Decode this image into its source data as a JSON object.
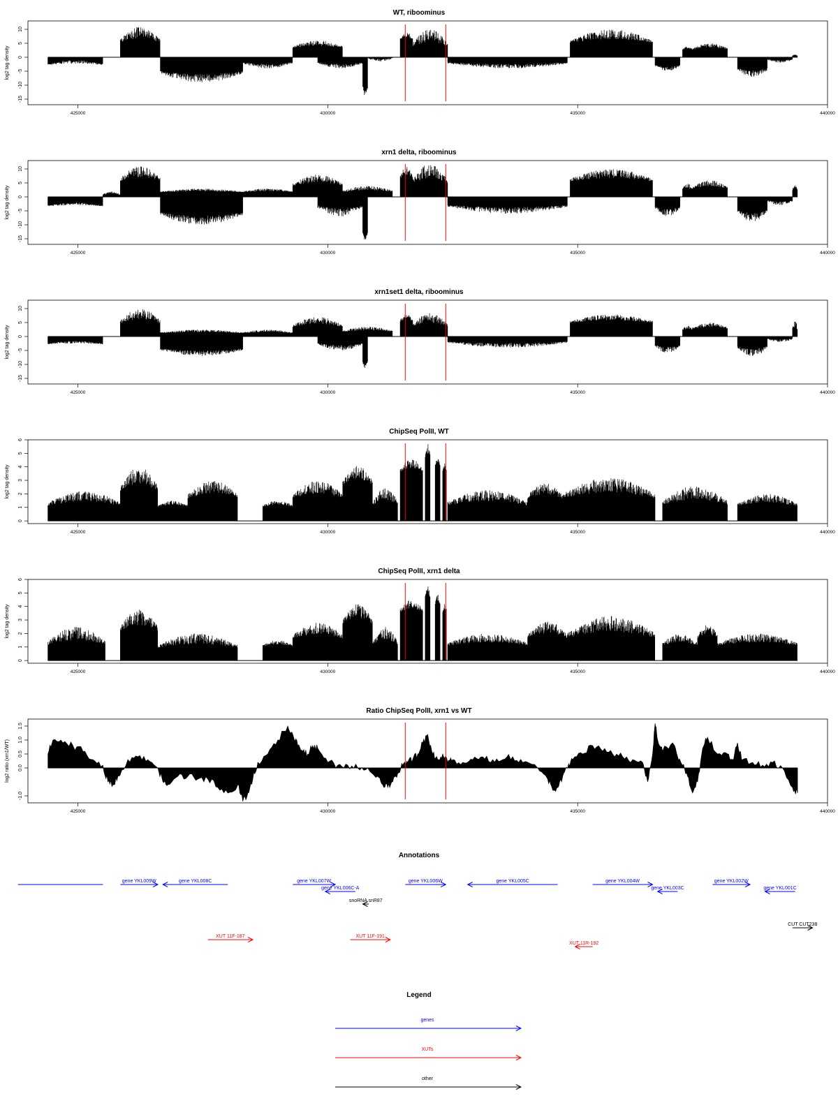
{
  "chart_data": [
    {
      "type": "bar",
      "title": "WT, riboominus",
      "ylabel": "log2 tag density",
      "ylim": [
        -17,
        13
      ],
      "yticks": [
        10,
        5,
        0,
        -5,
        -10,
        -15
      ],
      "xlim": [
        424000,
        440000
      ],
      "xticks": [
        425000,
        430000,
        435000,
        440000
      ],
      "markers": [
        431550,
        432360
      ],
      "segments": [
        {
          "x0": 424400,
          "x1": 425500,
          "a": -3.0,
          "b": -1.0
        },
        {
          "x0": 425850,
          "x1": 426650,
          "a": 4.5,
          "b": 11.0
        },
        {
          "x0": 426650,
          "x1": 428300,
          "a": -4.5,
          "b": -9.0
        },
        {
          "x0": 428300,
          "x1": 429300,
          "a": -1.5,
          "b": -4.0
        },
        {
          "x0": 429300,
          "x1": 430300,
          "a": 3.0,
          "b": 6.0
        },
        {
          "x0": 429800,
          "x1": 430700,
          "a": -1.5,
          "b": -4.0
        },
        {
          "x0": 430700,
          "x1": 430800,
          "a": -10.0,
          "b": -14.0
        },
        {
          "x0": 430800,
          "x1": 431300,
          "a": 0.0,
          "b": -1.5
        },
        {
          "x0": 431450,
          "x1": 431700,
          "a": 6.0,
          "b": 9.0
        },
        {
          "x0": 431700,
          "x1": 432400,
          "a": 3.0,
          "b": 10.0
        },
        {
          "x0": 432400,
          "x1": 434800,
          "a": -1.5,
          "b": -4.0
        },
        {
          "x0": 434850,
          "x1": 436500,
          "a": 4.5,
          "b": 10.0
        },
        {
          "x0": 436550,
          "x1": 437050,
          "a": -2.5,
          "b": -5.0
        },
        {
          "x0": 437100,
          "x1": 437300,
          "a": 2.5,
          "b": 4.0
        },
        {
          "x0": 437300,
          "x1": 438000,
          "a": 2.5,
          "b": 5.0
        },
        {
          "x0": 438200,
          "x1": 438800,
          "a": -3.5,
          "b": -7.0
        },
        {
          "x0": 438800,
          "x1": 439300,
          "a": -0.5,
          "b": -2.0
        },
        {
          "x0": 439300,
          "x1": 439400,
          "a": 0.5,
          "b": 1.0
        }
      ]
    },
    {
      "type": "bar",
      "title": "xrn1 delta, riboominus",
      "ylabel": "log2 tag density",
      "ylim": [
        -17,
        13
      ],
      "yticks": [
        10,
        5,
        0,
        -5,
        -10,
        -15
      ],
      "xlim": [
        424000,
        440000
      ],
      "xticks": [
        425000,
        430000,
        435000,
        440000
      ],
      "markers": [
        431550,
        432360
      ],
      "segments": [
        {
          "x0": 424400,
          "x1": 425500,
          "a": -3.5,
          "b": -2.0
        },
        {
          "x0": 425500,
          "x1": 425850,
          "a": 0.5,
          "b": 2.0
        },
        {
          "x0": 425850,
          "x1": 426650,
          "a": 5.0,
          "b": 11.0
        },
        {
          "x0": 426650,
          "x1": 428300,
          "a": -5.0,
          "b": -10.0
        },
        {
          "x0": 426650,
          "x1": 428300,
          "a": 1.5,
          "b": 3.0
        },
        {
          "x0": 428300,
          "x1": 429300,
          "a": 1.5,
          "b": 3.0
        },
        {
          "x0": 429300,
          "x1": 430300,
          "a": 3.5,
          "b": 8.0
        },
        {
          "x0": 429800,
          "x1": 430700,
          "a": -2.5,
          "b": -7.0
        },
        {
          "x0": 430300,
          "x1": 431300,
          "a": 1.5,
          "b": 4.0
        },
        {
          "x0": 430700,
          "x1": 430800,
          "a": -12.0,
          "b": -16.0
        },
        {
          "x0": 431450,
          "x1": 431700,
          "a": 6.0,
          "b": 11.0
        },
        {
          "x0": 431700,
          "x1": 432400,
          "a": 4.0,
          "b": 12.0
        },
        {
          "x0": 432400,
          "x1": 434800,
          "a": -2.5,
          "b": -6.0
        },
        {
          "x0": 434850,
          "x1": 436500,
          "a": 5.0,
          "b": 10.0
        },
        {
          "x0": 436550,
          "x1": 437050,
          "a": -3.0,
          "b": -7.0
        },
        {
          "x0": 437100,
          "x1": 437300,
          "a": 2.0,
          "b": 5.0
        },
        {
          "x0": 437300,
          "x1": 438000,
          "a": 2.5,
          "b": 6.0
        },
        {
          "x0": 438200,
          "x1": 438800,
          "a": -4.0,
          "b": -9.0
        },
        {
          "x0": 438800,
          "x1": 439300,
          "a": -1.0,
          "b": -3.0
        },
        {
          "x0": 439300,
          "x1": 439400,
          "a": 2.0,
          "b": 4.5
        }
      ]
    },
    {
      "type": "bar",
      "title": "xrn1set1 delta, riboominus",
      "ylabel": "log2 tag density",
      "ylim": [
        -17,
        13
      ],
      "yticks": [
        10,
        5,
        0,
        -5,
        -10,
        -15
      ],
      "xlim": [
        424000,
        440000
      ],
      "xticks": [
        425000,
        430000,
        435000,
        440000
      ],
      "markers": [
        431550,
        432360
      ],
      "segments": [
        {
          "x0": 424400,
          "x1": 425500,
          "a": -3.0,
          "b": -1.5
        },
        {
          "x0": 425850,
          "x1": 426650,
          "a": 4.0,
          "b": 10.0
        },
        {
          "x0": 426650,
          "x1": 428300,
          "a": -4.0,
          "b": -7.0
        },
        {
          "x0": 426650,
          "x1": 428300,
          "a": 1.0,
          "b": 2.5
        },
        {
          "x0": 428300,
          "x1": 429300,
          "a": 1.0,
          "b": 2.5
        },
        {
          "x0": 429300,
          "x1": 430300,
          "a": 3.0,
          "b": 7.0
        },
        {
          "x0": 429800,
          "x1": 430700,
          "a": -2.0,
          "b": -5.0
        },
        {
          "x0": 430300,
          "x1": 431300,
          "a": 1.5,
          "b": 3.5
        },
        {
          "x0": 430700,
          "x1": 430800,
          "a": -8.0,
          "b": -12.0
        },
        {
          "x0": 431450,
          "x1": 431700,
          "a": 5.0,
          "b": 8.0
        },
        {
          "x0": 431700,
          "x1": 432400,
          "a": 3.0,
          "b": 8.5
        },
        {
          "x0": 432400,
          "x1": 434800,
          "a": -1.5,
          "b": -4.0
        },
        {
          "x0": 434850,
          "x1": 436500,
          "a": 4.5,
          "b": 8.0
        },
        {
          "x0": 436550,
          "x1": 437050,
          "a": -2.5,
          "b": -6.0
        },
        {
          "x0": 437100,
          "x1": 437300,
          "a": 2.0,
          "b": 4.0
        },
        {
          "x0": 437300,
          "x1": 438000,
          "a": 2.5,
          "b": 5.0
        },
        {
          "x0": 438200,
          "x1": 438800,
          "a": -3.0,
          "b": -7.0
        },
        {
          "x0": 438800,
          "x1": 439300,
          "a": -0.5,
          "b": -2.0
        },
        {
          "x0": 439300,
          "x1": 439400,
          "a": 2.0,
          "b": 6.0
        }
      ]
    },
    {
      "type": "bar",
      "title": "ChipSeq PolII, WT",
      "ylabel": "log2 tag density",
      "ylim": [
        -0.2,
        6
      ],
      "yticks": [
        0,
        1,
        2,
        3,
        4,
        5,
        6
      ],
      "xlim": [
        424000,
        440000
      ],
      "xticks": [
        425000,
        430000,
        435000,
        440000
      ],
      "markers": [
        431550,
        432360
      ],
      "segments": [
        {
          "x0": 424400,
          "x1": 425850,
          "a": 1.0,
          "b": 2.2
        },
        {
          "x0": 425850,
          "x1": 426600,
          "a": 2.0,
          "b": 4.0
        },
        {
          "x0": 426600,
          "x1": 427200,
          "a": 1.0,
          "b": 1.5
        },
        {
          "x0": 427200,
          "x1": 428200,
          "a": 1.5,
          "b": 3.0
        },
        {
          "x0": 428700,
          "x1": 429300,
          "a": 1.0,
          "b": 1.5
        },
        {
          "x0": 429300,
          "x1": 430300,
          "a": 1.5,
          "b": 3.0
        },
        {
          "x0": 430300,
          "x1": 430900,
          "a": 2.5,
          "b": 4.1
        },
        {
          "x0": 430900,
          "x1": 431400,
          "a": 1.0,
          "b": 2.5
        },
        {
          "x0": 431450,
          "x1": 431900,
          "a": 3.5,
          "b": 4.6
        },
        {
          "x0": 431950,
          "x1": 432050,
          "a": 4.5,
          "b": 5.7
        },
        {
          "x0": 432150,
          "x1": 432250,
          "a": 4.0,
          "b": 4.7
        },
        {
          "x0": 432300,
          "x1": 432380,
          "a": 3.5,
          "b": 4.3
        },
        {
          "x0": 432400,
          "x1": 434000,
          "a": 1.0,
          "b": 2.3
        },
        {
          "x0": 434000,
          "x1": 434700,
          "a": 1.5,
          "b": 2.8
        },
        {
          "x0": 434700,
          "x1": 436550,
          "a": 1.5,
          "b": 3.2
        },
        {
          "x0": 436700,
          "x1": 438000,
          "a": 1.0,
          "b": 2.6
        },
        {
          "x0": 438200,
          "x1": 439400,
          "a": 1.0,
          "b": 2.0
        }
      ]
    },
    {
      "type": "bar",
      "title": "ChipSeq PolII, xrn1 delta",
      "ylabel": "log2 tag density",
      "ylim": [
        -0.2,
        6
      ],
      "yticks": [
        0,
        1,
        2,
        3,
        4,
        5,
        6
      ],
      "xlim": [
        424000,
        440000
      ],
      "xticks": [
        425000,
        430000,
        435000,
        440000
      ],
      "markers": [
        431550,
        432360
      ],
      "segments": [
        {
          "x0": 424400,
          "x1": 425550,
          "a": 1.0,
          "b": 2.5
        },
        {
          "x0": 425850,
          "x1": 426600,
          "a": 2.0,
          "b": 3.8
        },
        {
          "x0": 426600,
          "x1": 428200,
          "a": 0.8,
          "b": 2.0
        },
        {
          "x0": 428700,
          "x1": 429300,
          "a": 1.0,
          "b": 1.5
        },
        {
          "x0": 429300,
          "x1": 430300,
          "a": 1.5,
          "b": 2.8
        },
        {
          "x0": 430300,
          "x1": 430900,
          "a": 2.5,
          "b": 4.2
        },
        {
          "x0": 430900,
          "x1": 431400,
          "a": 1.0,
          "b": 2.5
        },
        {
          "x0": 431450,
          "x1": 431900,
          "a": 3.5,
          "b": 4.5
        },
        {
          "x0": 431950,
          "x1": 432050,
          "a": 4.5,
          "b": 5.7
        },
        {
          "x0": 432150,
          "x1": 432250,
          "a": 4.0,
          "b": 5.0
        },
        {
          "x0": 432300,
          "x1": 432380,
          "a": 3.5,
          "b": 4.3
        },
        {
          "x0": 432400,
          "x1": 434000,
          "a": 1.0,
          "b": 2.0
        },
        {
          "x0": 434000,
          "x1": 434800,
          "a": 1.5,
          "b": 2.9
        },
        {
          "x0": 434800,
          "x1": 436550,
          "a": 1.5,
          "b": 3.3
        },
        {
          "x0": 436700,
          "x1": 437400,
          "a": 1.0,
          "b": 2.0
        },
        {
          "x0": 437400,
          "x1": 437800,
          "a": 1.5,
          "b": 2.7
        },
        {
          "x0": 437800,
          "x1": 439400,
          "a": 1.0,
          "b": 2.0
        }
      ]
    },
    {
      "type": "area",
      "title": "Ratio ChipSeq PolII, xrn1 vs WT",
      "ylabel": "log2 ratio (xrn1/WT)",
      "ylim": [
        -1.25,
        1.75
      ],
      "yticks": [
        1.5,
        1.0,
        0.5,
        0.0,
        -1.0
      ],
      "ytick_labels": [
        "1.5",
        "1.0",
        "0.5",
        "0.0",
        "-1.0"
      ],
      "xlim": [
        424000,
        440000
      ],
      "xticks": [
        425000,
        430000,
        435000,
        440000
      ],
      "markers": [
        431550,
        432360
      ],
      "x": [
        424400,
        424500,
        424700,
        424900,
        425100,
        425300,
        425500,
        425600,
        425700,
        425800,
        426000,
        426200,
        426400,
        426600,
        426700,
        426800,
        427000,
        427200,
        427400,
        427600,
        427800,
        428000,
        428200,
        428300,
        428400,
        428500,
        428600,
        428800,
        429000,
        429200,
        429300,
        429400,
        429500,
        429600,
        429700,
        429800,
        430000,
        430200,
        430400,
        430600,
        430800,
        431000,
        431100,
        431200,
        431300,
        431400,
        431500,
        431600,
        431700,
        431800,
        431900,
        432000,
        432100,
        432200,
        432300,
        432400,
        432500,
        432700,
        432900,
        433100,
        433300,
        433500,
        433700,
        433900,
        434200,
        434400,
        434500,
        434600,
        434700,
        434800,
        434900,
        435100,
        435300,
        435500,
        435700,
        435900,
        436100,
        436300,
        436400,
        436500,
        436550,
        436600,
        436700,
        436900,
        437000,
        437100,
        437200,
        437300,
        437400,
        437500,
        437600,
        437800,
        438000,
        438100,
        438200,
        438300,
        438500,
        438700,
        438900,
        439100,
        439300,
        439400
      ],
      "y": [
        0.5,
        1.0,
        0.9,
        0.8,
        0.6,
        0.3,
        0.1,
        -0.5,
        -0.6,
        -0.3,
        0.3,
        0.4,
        0.3,
        0.0,
        -0.5,
        -0.6,
        -0.3,
        -0.3,
        -0.4,
        -0.4,
        -0.7,
        -0.9,
        -0.6,
        -1.2,
        -0.9,
        -0.4,
        0.2,
        0.5,
        1.0,
        1.5,
        1.2,
        0.8,
        0.6,
        0.5,
        0.8,
        0.7,
        0.2,
        0.1,
        0.1,
        0.0,
        0.0,
        -0.3,
        -0.6,
        -0.7,
        -0.5,
        -0.2,
        0.1,
        0.2,
        0.3,
        0.5,
        0.9,
        1.2,
        0.5,
        0.3,
        0.5,
        0.2,
        0.3,
        0.2,
        0.3,
        0.4,
        0.3,
        0.3,
        0.4,
        0.2,
        0.0,
        -0.4,
        -0.8,
        -0.7,
        -0.3,
        0.0,
        0.3,
        0.5,
        0.8,
        0.6,
        0.5,
        0.4,
        0.3,
        0.2,
        -0.5,
        0.5,
        1.6,
        1.0,
        0.6,
        0.9,
        0.4,
        0.1,
        -0.3,
        -0.9,
        -0.5,
        0.7,
        1.1,
        0.5,
        0.5,
        0.3,
        0.9,
        0.3,
        0.2,
        0.1,
        0.2,
        0.0,
        -0.7,
        -0.9
      ]
    }
  ],
  "annotations": {
    "title": "Annotations",
    "features": [
      {
        "label": "",
        "kind": "gene",
        "strand": "none",
        "x0": 423800,
        "x1": 425500,
        "row": 0
      },
      {
        "label": "gene YKL009W",
        "kind": "gene",
        "strand": "+",
        "x0": 425850,
        "x1": 426600,
        "row": 0
      },
      {
        "label": "gene YKL008C",
        "kind": "gene",
        "strand": "-",
        "x0": 426700,
        "x1": 428000,
        "row": 0
      },
      {
        "label": "gene YKL007W",
        "kind": "gene",
        "strand": "+",
        "x0": 429300,
        "x1": 430150,
        "row": 0
      },
      {
        "label": "gene YKL006C-A",
        "kind": "gene",
        "strand": "-",
        "x0": 429950,
        "x1": 430550,
        "row": 1
      },
      {
        "label": "gene YKL006W",
        "kind": "gene",
        "strand": "+",
        "x0": 431550,
        "x1": 432360,
        "row": 0
      },
      {
        "label": "gene YKL005C",
        "kind": "gene",
        "strand": "-",
        "x0": 432800,
        "x1": 434600,
        "row": 0
      },
      {
        "label": "gene YKL004W",
        "kind": "gene",
        "strand": "+",
        "x0": 435300,
        "x1": 436500,
        "row": 0
      },
      {
        "label": "gene YKL003C",
        "kind": "gene",
        "strand": "-",
        "x0": 436600,
        "x1": 437000,
        "row": 1
      },
      {
        "label": "gene YKL002W",
        "kind": "gene",
        "strand": "+",
        "x0": 437700,
        "x1": 438450,
        "row": 0
      },
      {
        "label": "gene YKL001C",
        "kind": "gene",
        "strand": "-",
        "x0": 438750,
        "x1": 439350,
        "row": 1
      },
      {
        "label": "snoRNA snR87",
        "kind": "other",
        "strand": "-",
        "x0": 430700,
        "x1": 430820,
        "row": 2
      },
      {
        "label": "CUT CUT238",
        "kind": "other",
        "strand": "+",
        "x0": 439300,
        "x1": 439700,
        "row": 3
      },
      {
        "label": "XUT 11F-187",
        "kind": "xut",
        "strand": "+",
        "x0": 427600,
        "x1": 428500,
        "row": 4
      },
      {
        "label": "XUT 11F-191",
        "kind": "xut",
        "strand": "+",
        "x0": 430450,
        "x1": 431250,
        "row": 4
      },
      {
        "label": "XUT 11R-192",
        "kind": "xut",
        "strand": "-",
        "x0": 434950,
        "x1": 435300,
        "row": 5
      }
    ]
  },
  "legend": {
    "title": "Legend",
    "items": [
      {
        "label": "genes",
        "color": "#0000ff"
      },
      {
        "label": "XUTs",
        "color": "#ff0000"
      },
      {
        "label": "other",
        "color": "#000000"
      }
    ]
  },
  "colors": {
    "gene": "#0000ff",
    "xut": "#ff0000",
    "other": "#000000",
    "marker": "#ff0000",
    "bars": "#000000"
  }
}
